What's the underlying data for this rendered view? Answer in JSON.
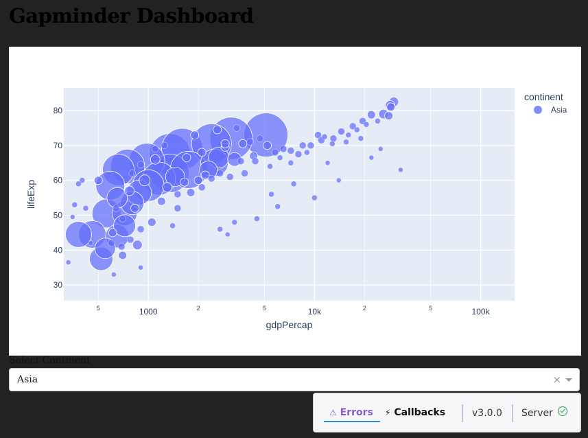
{
  "page_title": "Gapminder Dashboard",
  "dropdown": {
    "label": "Select Continent",
    "value": "Asia",
    "clear_symbol": "×"
  },
  "devtools": {
    "errors_label": "Errors",
    "errors_icon": "⚠",
    "callbacks_label": "Callbacks",
    "callbacks_icon": "⚡",
    "version": "v3.0.0",
    "server_label": "Server"
  },
  "chart_data": {
    "type": "scatter",
    "xlabel": "gdpPercap",
    "ylabel": "lifeExp",
    "x_scale": "log",
    "xlim": [
      310,
      160000
    ],
    "ylim": [
      25.5,
      86.5
    ],
    "x_ticks": [
      {
        "v": 500,
        "label": "5",
        "minor": true
      },
      {
        "v": 1000,
        "label": "1000",
        "minor": false
      },
      {
        "v": 2000,
        "label": "2",
        "minor": true
      },
      {
        "v": 5000,
        "label": "5",
        "minor": true
      },
      {
        "v": 10000,
        "label": "10k",
        "minor": false
      },
      {
        "v": 20000,
        "label": "2",
        "minor": true
      },
      {
        "v": 50000,
        "label": "5",
        "minor": true
      },
      {
        "v": 100000,
        "label": "100k",
        "minor": false
      }
    ],
    "y_ticks": [
      30,
      40,
      50,
      60,
      70,
      80
    ],
    "grid": true,
    "legend": {
      "title": "continent",
      "placement": "top-right"
    },
    "series": [
      {
        "name": "Asia",
        "color": "#636efa",
        "points": [
          [
            520,
            37.5,
            34
          ],
          [
            550,
            40.5,
            30
          ],
          [
            380,
            44.5,
            38
          ],
          [
            460,
            44.5,
            40
          ],
          [
            650,
            44,
            34
          ],
          [
            720,
            47,
            32
          ],
          [
            560,
            50.5,
            42
          ],
          [
            720,
            50.5,
            36
          ],
          [
            650,
            55,
            30
          ],
          [
            800,
            53.5,
            34
          ],
          [
            880,
            56.5,
            36
          ],
          [
            1000,
            58.5,
            46
          ],
          [
            590,
            58.5,
            42
          ],
          [
            1160,
            60.5,
            48
          ],
          [
            660,
            63,
            46
          ],
          [
            750,
            64,
            50
          ],
          [
            980,
            65.5,
            52
          ],
          [
            1350,
            62,
            56
          ],
          [
            1350,
            67.5,
            60
          ],
          [
            1600,
            69,
            60
          ],
          [
            1750,
            63,
            54
          ],
          [
            2400,
            70.5,
            58
          ],
          [
            2500,
            65,
            40
          ],
          [
            3150,
            72,
            62
          ],
          [
            2650,
            66.5,
            30
          ],
          [
            5100,
            73,
            64
          ],
          [
            1450,
            61,
            28
          ],
          [
            2300,
            63,
            26
          ],
          [
            3300,
            66,
            20
          ],
          [
            860,
            41.5,
            14
          ],
          [
            700,
            38.5,
            12
          ],
          [
            500,
            60,
            12
          ],
          [
            4300,
            67,
            12
          ],
          [
            8000,
            67.5,
            10
          ],
          [
            10500,
            73,
            10
          ],
          [
            13000,
            72,
            10
          ],
          [
            28000,
            78.5,
            12
          ],
          [
            30000,
            82.5,
            14
          ],
          [
            28500,
            81.5,
            14
          ],
          [
            28800,
            81,
            12
          ],
          [
            26000,
            79,
            14
          ],
          [
            22000,
            78.8,
            12
          ],
          [
            19500,
            77,
            10
          ],
          [
            17000,
            75.5,
            10
          ],
          [
            14500,
            74,
            10
          ],
          [
            9500,
            70,
            10
          ],
          [
            7200,
            68.5,
            10
          ],
          [
            1200,
            54,
            12
          ],
          [
            1800,
            56.5,
            12
          ],
          [
            2100,
            58,
            10
          ],
          [
            2700,
            62,
            10
          ],
          [
            800,
            62,
            10
          ],
          [
            640,
            52,
            10
          ],
          [
            700,
            49,
            10
          ],
          [
            600,
            42,
            10
          ],
          [
            380,
            59,
            8
          ],
          [
            360,
            53,
            8
          ],
          [
            420,
            52,
            8
          ],
          [
            400,
            60,
            8
          ],
          [
            330,
            36.5,
            7
          ],
          [
            350,
            49.5,
            7
          ],
          [
            3000,
            44.5,
            7
          ],
          [
            10000,
            55,
            8
          ],
          [
            12000,
            65,
            7
          ],
          [
            14000,
            60,
            7
          ],
          [
            22000,
            66.5,
            7
          ],
          [
            25000,
            69,
            7
          ],
          [
            33000,
            63,
            7
          ],
          [
            6000,
            52.5,
            8
          ],
          [
            4500,
            49,
            8
          ],
          [
            1500,
            52,
            10
          ],
          [
            1650,
            59.5,
            12
          ],
          [
            2200,
            61.5,
            12
          ],
          [
            2900,
            69.5,
            12
          ],
          [
            3700,
            70.5,
            12
          ],
          [
            4100,
            71,
            10
          ],
          [
            4700,
            72,
            10
          ],
          [
            5200,
            70,
            12
          ],
          [
            5800,
            68,
            10
          ],
          [
            6500,
            69,
            10
          ],
          [
            8500,
            70,
            10
          ],
          [
            11000,
            71.5,
            10
          ],
          [
            12800,
            70.5,
            8
          ],
          [
            16000,
            73,
            8
          ],
          [
            18000,
            74.5,
            8
          ],
          [
            20500,
            76,
            8
          ],
          [
            24000,
            77,
            8
          ],
          [
            1900,
            73,
            12
          ],
          [
            2600,
            74.5,
            12
          ],
          [
            3400,
            75,
            10
          ],
          [
            1250,
            70,
            10
          ],
          [
            1100,
            66,
            14
          ],
          [
            950,
            60,
            16
          ],
          [
            770,
            57,
            14
          ],
          [
            830,
            52,
            12
          ],
          [
            610,
            45,
            12
          ],
          [
            690,
            41,
            10
          ],
          [
            780,
            43,
            10
          ],
          [
            900,
            46,
            10
          ],
          [
            1050,
            48,
            12
          ],
          [
            1300,
            58,
            14
          ],
          [
            1500,
            56,
            10
          ],
          [
            2000,
            60,
            12
          ],
          [
            2400,
            60.5,
            10
          ],
          [
            3100,
            61,
            10
          ],
          [
            3800,
            62,
            10
          ],
          [
            4400,
            65.5,
            10
          ],
          [
            5400,
            64,
            8
          ],
          [
            6200,
            66.5,
            8
          ],
          [
            7200,
            65,
            8
          ],
          [
            9000,
            68,
            8
          ],
          [
            11500,
            72.5,
            8
          ],
          [
            15500,
            71,
            8
          ],
          [
            19000,
            72,
            8
          ],
          [
            900,
            35,
            7
          ],
          [
            620,
            33,
            7
          ],
          [
            450,
            42,
            7
          ],
          [
            1400,
            47,
            8
          ],
          [
            2700,
            46,
            8
          ],
          [
            3300,
            48,
            8
          ],
          [
            5500,
            56,
            8
          ],
          [
            7500,
            59,
            8
          ],
          [
            900,
            64.5,
            10
          ],
          [
            1100,
            69,
            10
          ],
          [
            1700,
            66.5,
            12
          ],
          [
            2100,
            68,
            12
          ],
          [
            2900,
            70.5,
            12
          ],
          [
            3600,
            65.5,
            10
          ]
        ]
      }
    ]
  }
}
